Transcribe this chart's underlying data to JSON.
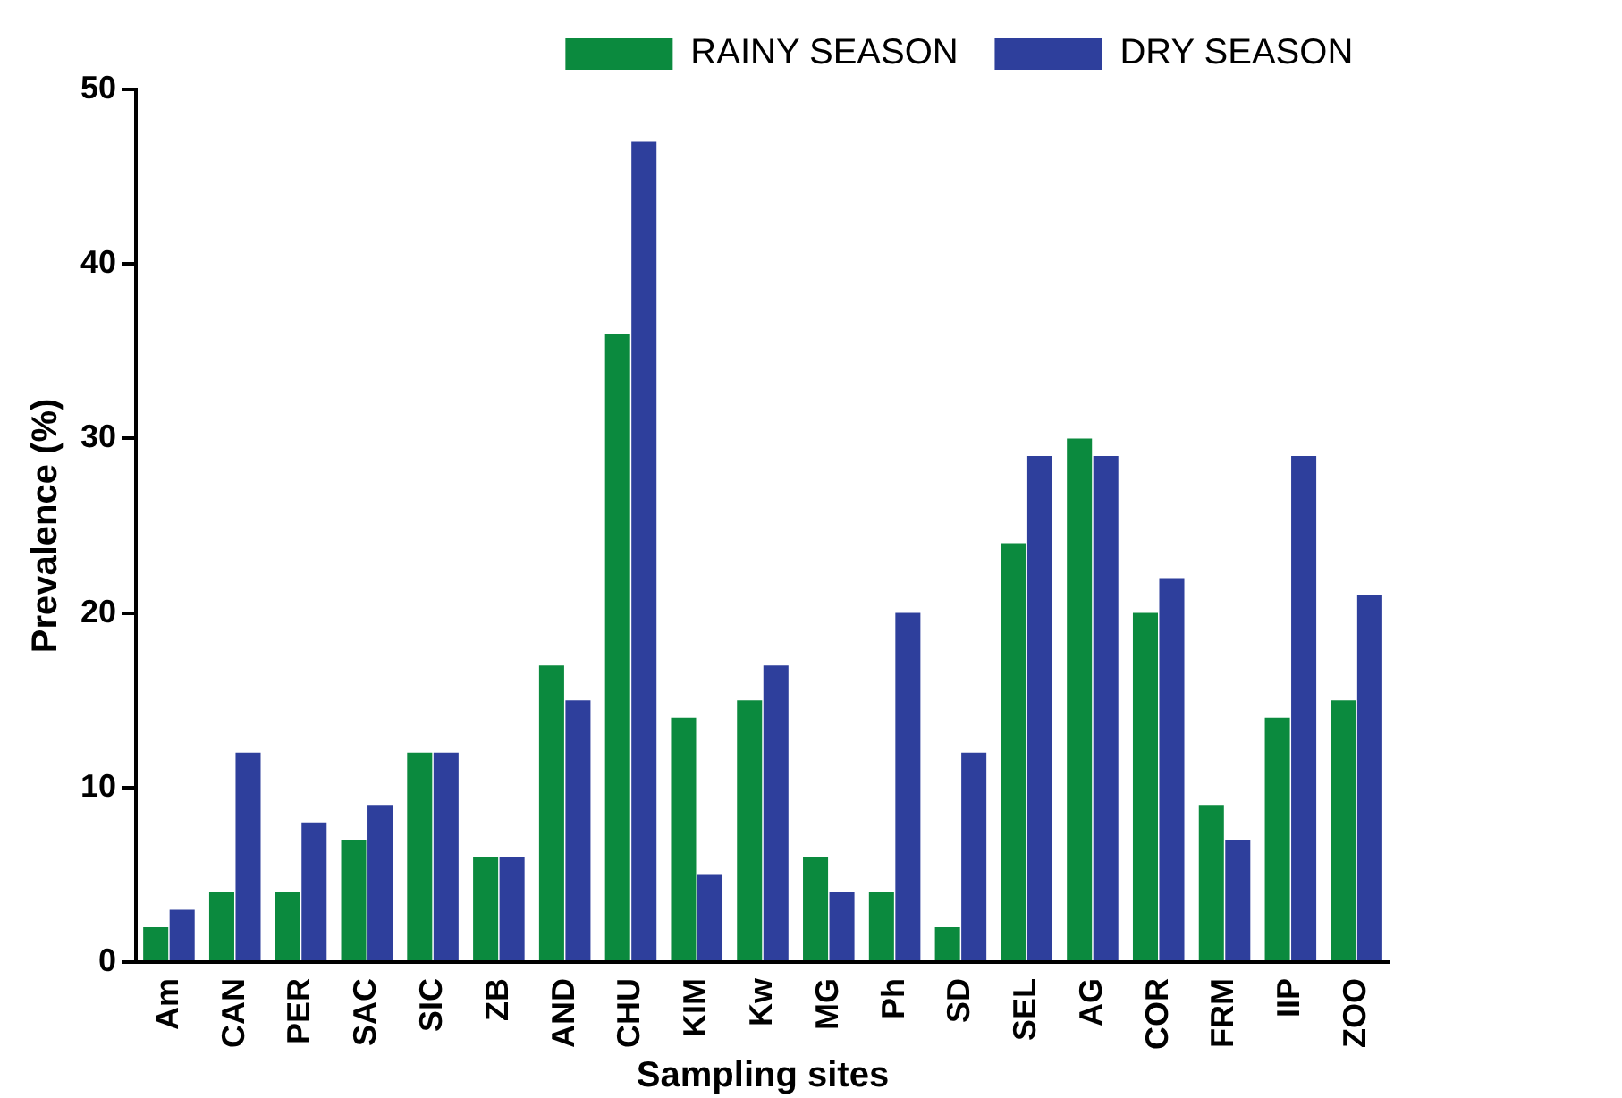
{
  "chart_data": {
    "type": "bar",
    "xlabel": "Sampling sites",
    "ylabel": "Prevalence (%)",
    "categories": [
      "Am",
      "CAN",
      "PER",
      "SAC",
      "SIC",
      "ZB",
      "AND",
      "CHU",
      "KIM",
      "Kw",
      "MG",
      "Ph",
      "SD",
      "SEL",
      "AG",
      "COR",
      "FRM",
      "IIP",
      "ZOO"
    ],
    "series": [
      {
        "name": "RAINY SEASON",
        "color": "#0b8a3e",
        "values": [
          2,
          4,
          4,
          7,
          12,
          6,
          17,
          36,
          14,
          15,
          6,
          4,
          2,
          24,
          30,
          20,
          9,
          14,
          15
        ]
      },
      {
        "name": "DRY SEASON",
        "color": "#2e3f9c",
        "values": [
          3,
          12,
          8,
          9,
          12,
          6,
          15,
          47,
          5,
          17,
          4,
          20,
          12,
          29,
          29,
          22,
          7,
          29,
          21
        ]
      }
    ],
    "ylim": [
      0,
      50
    ],
    "yticks": [
      0,
      10,
      20,
      30,
      40,
      50
    ],
    "grid": false,
    "legend": "top right"
  }
}
